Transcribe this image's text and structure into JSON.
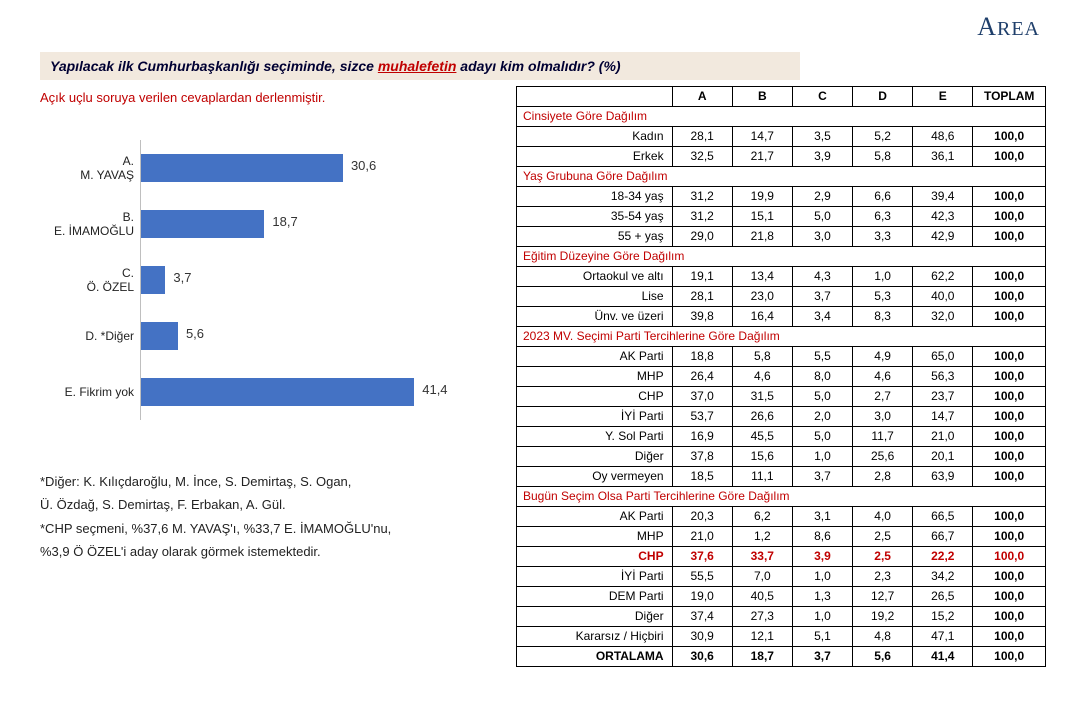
{
  "brand": "REA",
  "title_before": "Yapılacak ilk Cumhurbaşkanlığı seçiminde, sizce ",
  "title_red": "muhalefetin",
  "title_after": " adayı kim olmalıdır? (%)",
  "subnote": "Açık uçlu soruya verilen cevaplardan derlenmiştir.",
  "chart": {
    "type": "bar-horizontal",
    "max": 50,
    "bar_color": "#4472c4",
    "axis_label_color": "#333333",
    "categories": [
      {
        "label": "A.\nM. YAVAŞ",
        "value": 30.6,
        "text": "30,6"
      },
      {
        "label": "B.\nE. İMAMOĞLU",
        "value": 18.7,
        "text": "18,7"
      },
      {
        "label": "C.\nÖ. ÖZEL",
        "value": 3.7,
        "text": "3,7"
      },
      {
        "label": "D. *Diğer",
        "value": 5.6,
        "text": "5,6"
      },
      {
        "label": "E. Fikrim yok",
        "value": 41.4,
        "text": "41,4"
      }
    ]
  },
  "footnotes": [
    "*Diğer: K. Kılıçdaroğlu, M. İnce, S. Demirtaş, S. Ogan,",
    "Ü. Özdağ, S. Demirtaş, F. Erbakan, A. Gül.",
    "*CHP seçmeni, %37,6 M. YAVAŞ'ı, %33,7 E. İMAMOĞLU'nu,",
    "%3,9 Ö ÖZEL'i aday olarak görmek istemektedir."
  ],
  "table": {
    "columns": [
      "",
      "A",
      "B",
      "C",
      "D",
      "E",
      "TOPLAM"
    ],
    "sections": [
      {
        "header": "Cinsiyete Göre Dağılım",
        "rows": [
          {
            "label": "Kadın",
            "cells": [
              "28,1",
              "14,7",
              "3,5",
              "5,2",
              "48,6",
              "100,0"
            ]
          },
          {
            "label": "Erkek",
            "cells": [
              "32,5",
              "21,7",
              "3,9",
              "5,8",
              "36,1",
              "100,0"
            ]
          }
        ]
      },
      {
        "header": "Yaş Grubuna Göre Dağılım",
        "rows": [
          {
            "label": "18-34 yaş",
            "cells": [
              "31,2",
              "19,9",
              "2,9",
              "6,6",
              "39,4",
              "100,0"
            ]
          },
          {
            "label": "35-54 yaş",
            "cells": [
              "31,2",
              "15,1",
              "5,0",
              "6,3",
              "42,3",
              "100,0"
            ]
          },
          {
            "label": "55 + yaş",
            "cells": [
              "29,0",
              "21,8",
              "3,0",
              "3,3",
              "42,9",
              "100,0"
            ]
          }
        ]
      },
      {
        "header": "Eğitim Düzeyine Göre Dağılım",
        "rows": [
          {
            "label": "Ortaokul ve altı",
            "cells": [
              "19,1",
              "13,4",
              "4,3",
              "1,0",
              "62,2",
              "100,0"
            ]
          },
          {
            "label": "Lise",
            "cells": [
              "28,1",
              "23,0",
              "3,7",
              "5,3",
              "40,0",
              "100,0"
            ]
          },
          {
            "label": "Ünv. ve üzeri",
            "cells": [
              "39,8",
              "16,4",
              "3,4",
              "8,3",
              "32,0",
              "100,0"
            ]
          }
        ]
      },
      {
        "header": "2023 MV. Seçimi Parti Tercihlerine Göre Dağılım",
        "rows": [
          {
            "label": "AK Parti",
            "cells": [
              "18,8",
              "5,8",
              "5,5",
              "4,9",
              "65,0",
              "100,0"
            ]
          },
          {
            "label": "MHP",
            "cells": [
              "26,4",
              "4,6",
              "8,0",
              "4,6",
              "56,3",
              "100,0"
            ]
          },
          {
            "label": "CHP",
            "cells": [
              "37,0",
              "31,5",
              "5,0",
              "2,7",
              "23,7",
              "100,0"
            ]
          },
          {
            "label": "İYİ Parti",
            "cells": [
              "53,7",
              "26,6",
              "2,0",
              "3,0",
              "14,7",
              "100,0"
            ]
          },
          {
            "label": "Y. Sol Parti",
            "cells": [
              "16,9",
              "45,5",
              "5,0",
              "11,7",
              "21,0",
              "100,0"
            ]
          },
          {
            "label": "Diğer",
            "cells": [
              "37,8",
              "15,6",
              "1,0",
              "25,6",
              "20,1",
              "100,0"
            ]
          },
          {
            "label": "Oy vermeyen",
            "cells": [
              "18,5",
              "11,1",
              "3,7",
              "2,8",
              "63,9",
              "100,0"
            ]
          }
        ]
      },
      {
        "header": "Bugün Seçim Olsa Parti Tercihlerine Göre Dağılım",
        "rows": [
          {
            "label": "AK Parti",
            "cells": [
              "20,3",
              "6,2",
              "3,1",
              "4,0",
              "66,5",
              "100,0"
            ]
          },
          {
            "label": "MHP",
            "cells": [
              "21,0",
              "1,2",
              "8,6",
              "2,5",
              "66,7",
              "100,0"
            ]
          },
          {
            "label": "CHP",
            "highlight": true,
            "cells": [
              "37,6",
              "33,7",
              "3,9",
              "2,5",
              "22,2",
              "100,0"
            ]
          },
          {
            "label": "İYİ Parti",
            "cells": [
              "55,5",
              "7,0",
              "1,0",
              "2,3",
              "34,2",
              "100,0"
            ]
          },
          {
            "label": "DEM Parti",
            "cells": [
              "19,0",
              "40,5",
              "1,3",
              "12,7",
              "26,5",
              "100,0"
            ]
          },
          {
            "label": "Diğer",
            "cells": [
              "37,4",
              "27,3",
              "1,0",
              "19,2",
              "15,2",
              "100,0"
            ]
          },
          {
            "label": "Kararsız / Hiçbiri",
            "cells": [
              "30,9",
              "12,1",
              "5,1",
              "4,8",
              "47,1",
              "100,0"
            ]
          },
          {
            "label": "ORTALAMA",
            "bold": true,
            "cells": [
              "30,6",
              "18,7",
              "3,7",
              "5,6",
              "41,4",
              "100,0"
            ]
          }
        ]
      }
    ]
  }
}
